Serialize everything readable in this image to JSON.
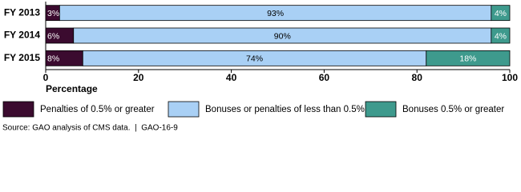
{
  "chart_data": {
    "type": "stacked-barh",
    "categories": [
      "FY 2013",
      "FY 2014",
      "FY 2015"
    ],
    "series": [
      {
        "name": "Penalties of 0.5% or greater",
        "color": "#3b0b2f",
        "values": [
          3,
          6,
          8
        ],
        "value_labels": [
          "3%",
          "6%",
          "8%"
        ]
      },
      {
        "name": "Bonuses or penalties of less than 0.5%",
        "color": "#a9d0f5",
        "values": [
          93,
          90,
          74
        ],
        "value_labels": [
          "93%",
          "90%",
          "74%"
        ]
      },
      {
        "name": "Bonuses 0.5% or greater",
        "color": "#3e9a8d",
        "values": [
          4,
          4,
          18
        ],
        "value_labels": [
          "4%",
          "4%",
          "18%"
        ]
      }
    ],
    "xlabel": "Percentage",
    "xlim": [
      0,
      100
    ],
    "xticks": [
      0,
      20,
      40,
      60,
      80,
      100
    ],
    "source": "Source: GAO analysis of CMS data.  |  GAO-16-9"
  }
}
